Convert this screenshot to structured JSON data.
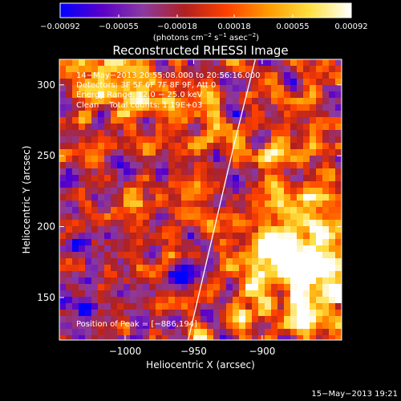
{
  "chart_data": {
    "type": "heatmap",
    "title": "Reconstructed RHESSI Image",
    "xlabel": "Heliocentric X (arcsec)",
    "ylabel": "Heliocentric Y (arcsec)",
    "xlim": [
      -1048,
      -842
    ],
    "ylim": [
      120,
      318
    ],
    "x_ticks": [
      -1000,
      -950,
      -900
    ],
    "x_tick_labels": [
      "−1000",
      "−950",
      "−900"
    ],
    "y_ticks": [
      150,
      200,
      250,
      300
    ],
    "y_tick_labels": [
      "150",
      "200",
      "250",
      "300"
    ],
    "colorbar": {
      "range": [
        -0.00092,
        0.00092
      ],
      "ticks": [
        -0.00092,
        -0.00055,
        -0.00018,
        0.00018,
        0.00055,
        0.00092
      ],
      "tick_labels": [
        "−0.00092",
        "−0.00055",
        "−0.00018",
        "0.00018",
        "0.00055",
        "0.00092"
      ],
      "unit_label_parts": [
        "(photons cm",
        "−2",
        " s",
        "−1",
        " asec",
        "−2",
        ")"
      ],
      "colormap": "rainbow-hot",
      "stops": [
        "#0000ff",
        "#5a00c8",
        "#8b3aa0",
        "#b02020",
        "#ff4000",
        "#ff9a00",
        "#ffe040",
        "#ffffff"
      ]
    },
    "grid": false,
    "peak_x": -886,
    "peak_y": 194,
    "limb_line": [
      [
        -954,
        120
      ],
      [
        -920,
        260
      ],
      [
        -905,
        318
      ]
    ]
  },
  "annotations": {
    "time_range": "14−May−2013 20:55:08.000 to 20:56:16.000",
    "detectors": "Detectors: 3F 5F 6F 7F 8F 9F, Att 0",
    "energy": "Energy Range: 12.0 − 25.0 keV",
    "clean": "Clean    Total counts: 1.19E+03",
    "peak": "Position of Peak = [−886,194]"
  },
  "footer": {
    "timestamp": "15−May−2013 19:21"
  }
}
